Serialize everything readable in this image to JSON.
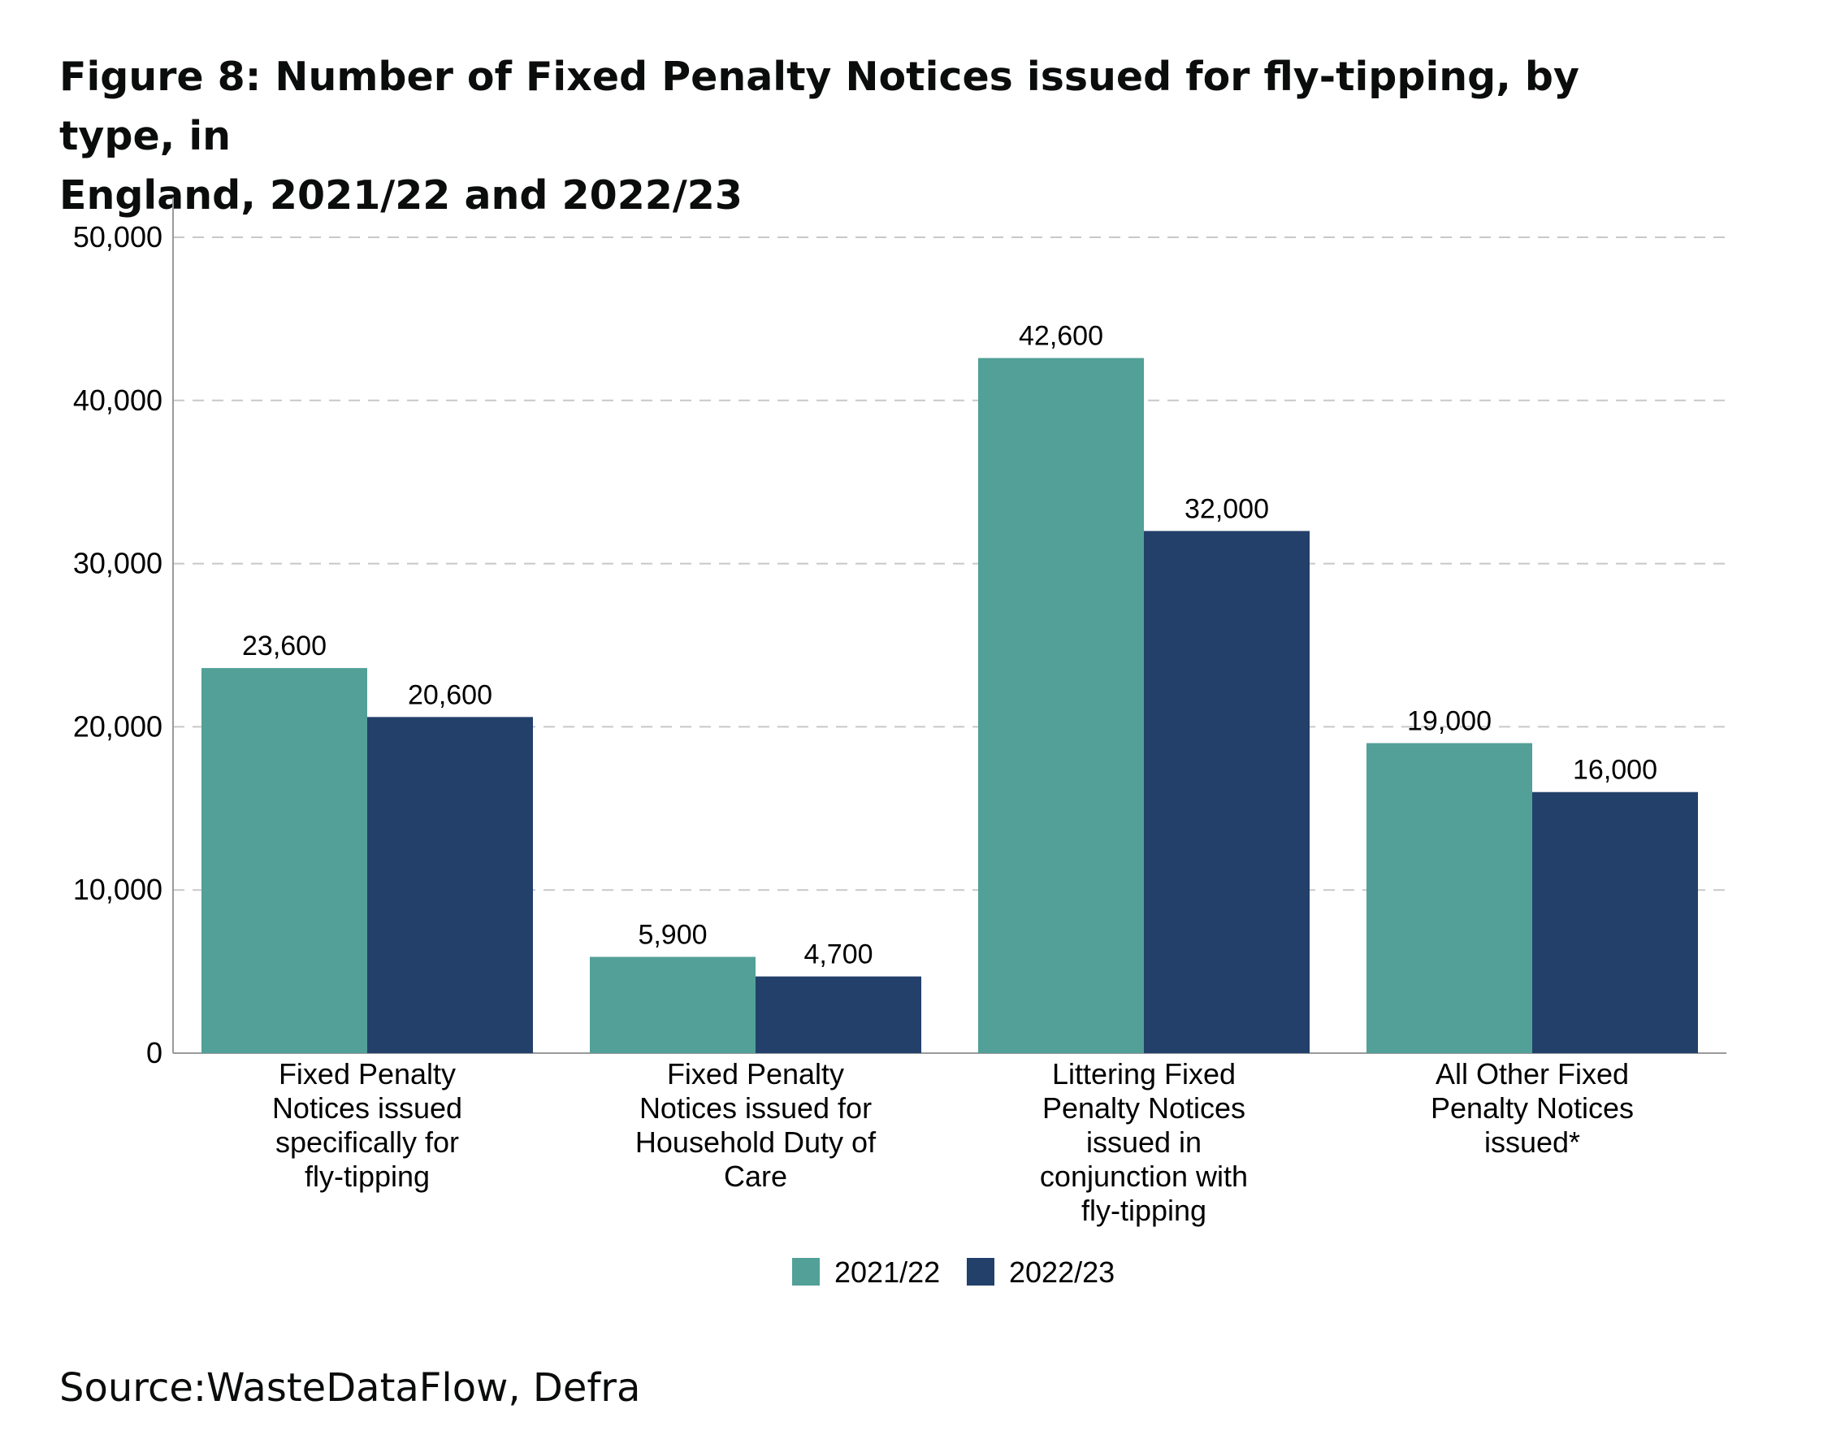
{
  "title_lines": [
    "Figure 8: Number of Fixed Penalty Notices issued for fly-tipping, by type, in",
    "England, 2021/22 and 2022/23"
  ],
  "source": "Source:WasteDataFlow, Defra",
  "colors": {
    "2021/22": "#52a097",
    "2022/23": "#22406a",
    "grid": "#c8c8c8",
    "axis": "#9a9a9a"
  },
  "chart_data": {
    "type": "bar",
    "title": "Figure 8: Number of Fixed Penalty Notices issued for fly-tipping, by type, in England, 2021/22 and 2022/23",
    "categories": [
      [
        "Fixed Penalty",
        "Notices issued",
        "specifically for",
        "fly-tipping"
      ],
      [
        "Fixed Penalty",
        "Notices issued for",
        "Household Duty of",
        "Care"
      ],
      [
        "Littering Fixed",
        "Penalty Notices",
        "issued in",
        "conjunction with",
        "fly-tipping"
      ],
      [
        "All Other Fixed",
        "Penalty Notices",
        "issued*"
      ]
    ],
    "series": [
      {
        "name": "2021/22",
        "values": [
          23600,
          5900,
          42600,
          19000
        ],
        "labels": [
          "23,600",
          "5,900",
          "42,600",
          "19,000"
        ]
      },
      {
        "name": "2022/23",
        "values": [
          20600,
          4700,
          32000,
          16000
        ],
        "labels": [
          "20,600",
          "4,700",
          "32,000",
          "16,000"
        ]
      }
    ],
    "yticks": [
      0,
      10000,
      20000,
      30000,
      40000,
      50000
    ],
    "ytick_labels": [
      "0",
      "10,000",
      "20,000",
      "30,000",
      "40,000",
      "50,000"
    ],
    "ylim": [
      0,
      50000
    ],
    "grid": "horizontal dashed",
    "legend": "bottom-center"
  }
}
